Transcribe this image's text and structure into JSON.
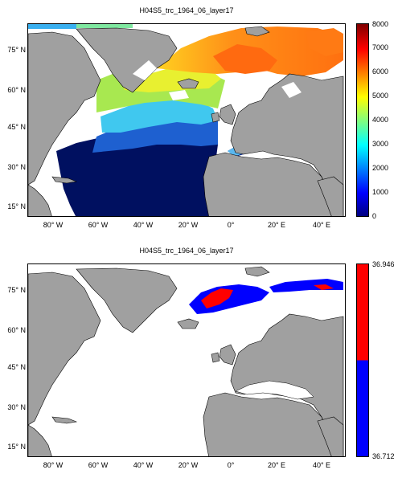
{
  "panels": [
    {
      "title": "H04S5_trc_1964_06_layer17",
      "colorbar": {
        "ticks": [
          "8000",
          "7000",
          "6000",
          "5000",
          "4000",
          "3000",
          "2000",
          "1000",
          "0"
        ],
        "range": [
          0,
          8000
        ],
        "colormap": "jet",
        "colors": [
          "#000080",
          "#0000ff",
          "#00ffff",
          "#ffff00",
          "#ff7f00",
          "#ff0000",
          "#7f0000"
        ]
      }
    },
    {
      "title": "H04S5_trc_1964_06_layer17",
      "colorbar": {
        "ticks": [
          "36.946",
          "36.712"
        ],
        "range": [
          36.712,
          36.946
        ],
        "colors": [
          "#ff0000",
          "#0000ff"
        ]
      }
    }
  ],
  "axes": {
    "lat_ticks": [
      "75° N",
      "60° N",
      "45° N",
      "30° N",
      "15° N"
    ],
    "lon_ticks": [
      "80° W",
      "60° W",
      "40° W",
      "20° W",
      "0°",
      "20° E",
      "40° E"
    ],
    "lon_range": [
      -90,
      50
    ],
    "lat_range": [
      10,
      87
    ]
  },
  "colors": {
    "land": "#a0a0a0",
    "coastline": "#000000",
    "nodata": "#ffffff"
  }
}
